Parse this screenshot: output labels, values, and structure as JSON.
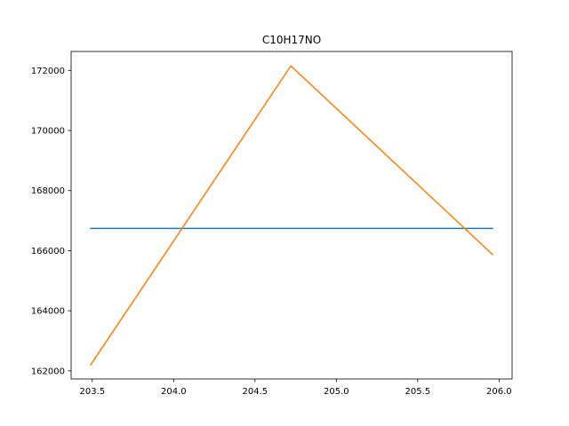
{
  "chart_data": {
    "type": "line",
    "title": "C10H17NO",
    "xlabel": "",
    "ylabel": "",
    "xlim": [
      203.37,
      206.08
    ],
    "ylim": [
      161730,
      172630
    ],
    "grid": false,
    "xticks": [
      203.5,
      204.0,
      204.5,
      205.0,
      205.5,
      206.0
    ],
    "xtick_labels": [
      "203.5",
      "204.0",
      "204.5",
      "205.0",
      "205.5",
      "206.0"
    ],
    "yticks": [
      162000,
      164000,
      166000,
      168000,
      170000,
      172000
    ],
    "ytick_labels": [
      "162000",
      "164000",
      "166000",
      "168000",
      "170000",
      "172000"
    ],
    "series": [
      {
        "color": "#1f77b4",
        "x": [
          203.49,
          205.96
        ],
        "y": [
          166740,
          166740
        ]
      },
      {
        "color": "#ff7f0e",
        "x": [
          203.49,
          204.72,
          205.96
        ],
        "y": [
          162200,
          172150,
          165870
        ]
      }
    ]
  }
}
